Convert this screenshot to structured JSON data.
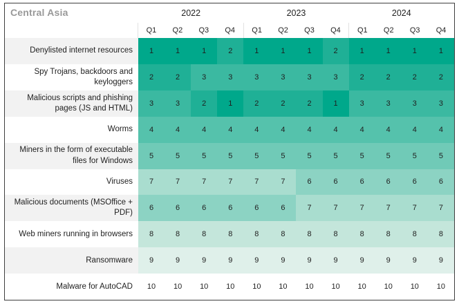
{
  "panel": {
    "title": "Central Asia"
  },
  "colors": {
    "frame_border": "#3d3d3d",
    "title_text": "#999999",
    "header_text": "#222222",
    "label_text": "#1e1e1e",
    "cell_text": "#1f1f1f",
    "zebra_odd": "#f2f2f2",
    "zebra_even": "#ffffff",
    "accent_teal": "#00a88b"
  },
  "chart_data": {
    "type": "heatmap",
    "title": "Central Asia",
    "years": [
      "2022",
      "2023",
      "2024"
    ],
    "quarter_headers": [
      "Q1",
      "Q2",
      "Q3",
      "Q4",
      "Q1",
      "Q2",
      "Q3",
      "Q4",
      "Q1",
      "Q2",
      "Q3",
      "Q4"
    ],
    "value_range": [
      1,
      10
    ],
    "palette": {
      "1": "#00a88b",
      "2": "#1fb096",
      "3": "#3bb9a1",
      "4": "#55c2ac",
      "5": "#70cab7",
      "6": "#8cd3c3",
      "7": "#a9ddcf",
      "8": "#c4e6db",
      "9": "#dff0ea",
      "10": "#ffffff"
    },
    "rows": [
      {
        "label": "Denylisted internet resources",
        "values": [
          1,
          1,
          1,
          2,
          1,
          1,
          1,
          2,
          1,
          1,
          1,
          1
        ]
      },
      {
        "label": "Spy Trojans, backdoors and keyloggers",
        "values": [
          2,
          2,
          3,
          3,
          3,
          3,
          3,
          3,
          2,
          2,
          2,
          2
        ]
      },
      {
        "label": "Malicious scripts and phishing pages (JS and HTML)",
        "values": [
          3,
          3,
          2,
          1,
          2,
          2,
          2,
          1,
          3,
          3,
          3,
          3
        ]
      },
      {
        "label": "Worms",
        "values": [
          4,
          4,
          4,
          4,
          4,
          4,
          4,
          4,
          4,
          4,
          4,
          4
        ]
      },
      {
        "label": "Miners in the form of executable files for Windows",
        "values": [
          5,
          5,
          5,
          5,
          5,
          5,
          5,
          5,
          5,
          5,
          5,
          5
        ]
      },
      {
        "label": "Viruses",
        "values": [
          7,
          7,
          7,
          7,
          7,
          7,
          6,
          6,
          6,
          6,
          6,
          6
        ]
      },
      {
        "label": "Malicious documents (MSOffice + PDF)",
        "values": [
          6,
          6,
          6,
          6,
          6,
          6,
          7,
          7,
          7,
          7,
          7,
          7
        ]
      },
      {
        "label": "Web miners running in browsers",
        "values": [
          8,
          8,
          8,
          8,
          8,
          8,
          8,
          8,
          8,
          8,
          8,
          8
        ]
      },
      {
        "label": "Ransomware",
        "values": [
          9,
          9,
          9,
          9,
          9,
          9,
          9,
          9,
          9,
          9,
          9,
          9
        ]
      },
      {
        "label": "Malware for AutoCAD",
        "values": [
          10,
          10,
          10,
          10,
          10,
          10,
          10,
          10,
          10,
          10,
          10,
          10
        ]
      }
    ]
  }
}
